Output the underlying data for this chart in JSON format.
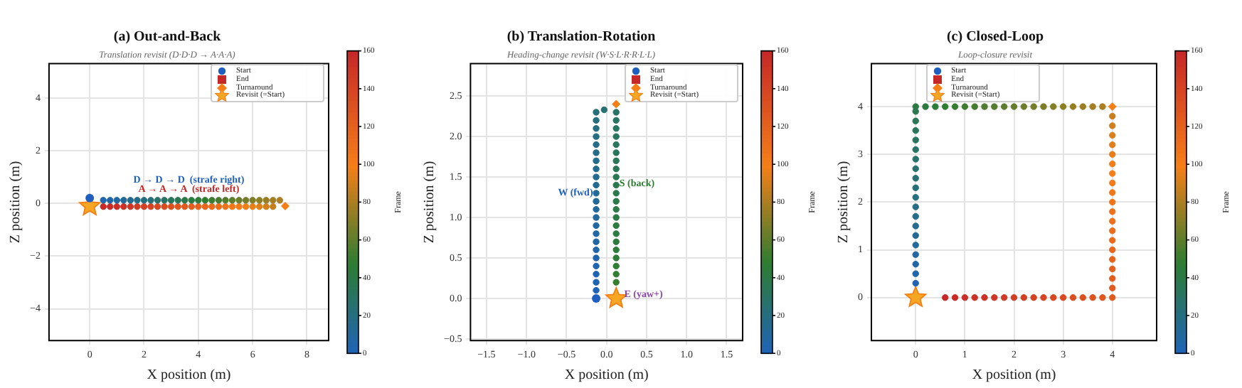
{
  "chart_data": [
    {
      "type": "scatter",
      "title": "(a) Out-and-Back",
      "subtitle": "Translation revisit (D·D·D → A·A·A)",
      "xlabel": "X position (m)",
      "ylabel": "Z position (m)",
      "clabel": "Frame",
      "clim": [
        0,
        160
      ],
      "cticks": [
        0,
        20,
        40,
        60,
        80,
        100,
        120,
        140,
        160
      ],
      "xlim": [
        -1.5,
        8.8
      ],
      "ylim": [
        -5.2,
        5.3
      ],
      "xticks": [
        0,
        2,
        4,
        6,
        8
      ],
      "yticks": [
        -4,
        -2,
        0,
        2,
        4
      ],
      "grid": true,
      "legend": "top right",
      "annotations": [
        "D → D → D  (strafe right)",
        "A → A → A  (strafe left)"
      ],
      "series": [
        {
          "marker": "circle",
          "x": [
            0.5,
            0.75,
            1,
            1.25,
            1.5,
            1.75,
            2,
            2.25,
            2.5,
            2.75,
            3,
            3.25,
            3.5,
            3.75,
            4,
            4.25,
            4.5,
            4.75,
            5,
            5.25,
            5.5,
            5.75,
            6,
            6.25,
            6.5,
            6.75,
            7
          ],
          "values": [
            0.12,
            0.12,
            0.12,
            0.12,
            0.12,
            0.12,
            0.12,
            0.12,
            0.12,
            0.12,
            0.12,
            0.12,
            0.12,
            0.12,
            0.12,
            0.12,
            0.12,
            0.12,
            0.12,
            0.12,
            0.12,
            0.12,
            0.12,
            0.12,
            0.12,
            0.12,
            0.12
          ],
          "colors": [
            "#1f65b0",
            "#2066a7",
            "#21689f",
            "#226996",
            "#236b8e",
            "#246d86",
            "#256e7d",
            "#267075",
            "#27726d",
            "#287364",
            "#29755c",
            "#2a7654",
            "#2b784b",
            "#2c7a43",
            "#2d7b3a",
            "#2e7d32",
            "#3a7d30",
            "#457d2f",
            "#517d2d",
            "#5d7d2c",
            "#687e2a",
            "#747e28",
            "#807e27",
            "#8b7e25",
            "#977e24",
            "#a37e22",
            "#aa7e21"
          ],
          "cvalues": [
            3,
            6,
            9,
            12,
            15,
            18,
            21,
            24,
            27,
            30,
            33,
            36,
            39,
            42,
            45,
            48,
            51,
            54,
            57,
            60,
            63,
            66,
            69,
            72,
            75,
            78,
            80
          ]
        },
        {
          "marker": "circle",
          "x": [
            6.75,
            6.5,
            6.25,
            6,
            5.75,
            5.5,
            5.25,
            5,
            4.75,
            4.5,
            4.25,
            4,
            3.75,
            3.5,
            3.25,
            3,
            2.75,
            2.5,
            2.25,
            2,
            1.75,
            1.5,
            1.25,
            1,
            0.75,
            0.5
          ],
          "values": [
            -0.12,
            -0.12,
            -0.12,
            -0.12,
            -0.12,
            -0.12,
            -0.12,
            -0.12,
            -0.12,
            -0.12,
            -0.12,
            -0.12,
            -0.12,
            -0.12,
            -0.12,
            -0.12,
            -0.12,
            -0.12,
            -0.12,
            -0.12,
            -0.12,
            -0.12,
            -0.12,
            -0.12,
            -0.12,
            -0.12
          ],
          "colors": [
            "#c67f1d",
            "#d17f1c",
            "#dd7f1a",
            "#e97f19",
            "#f47f17",
            "#f37b18",
            "#f17719",
            "#ee7219",
            "#ec6e1a",
            "#ea6a1b",
            "#e7661c",
            "#e5611d",
            "#e35d1e",
            "#e0591e",
            "#de541f",
            "#dc5020",
            "#d94c21",
            "#d74722",
            "#d54323",
            "#d23f24",
            "#d03b24",
            "#ce3625",
            "#cb3226",
            "#ca2f27",
            "#c82c27",
            "#c82b27"
          ],
          "cvalues": [
            87,
            90,
            93,
            96,
            99,
            102,
            105,
            108,
            111,
            114,
            117,
            120,
            123,
            126,
            129,
            132,
            135,
            138,
            141,
            144,
            147,
            150,
            153,
            155,
            157,
            158
          ]
        },
        {
          "type": "scatter",
          "name": "Start",
          "color": "#1f5fbf",
          "marker": "circle",
          "x": [
            0
          ],
          "values": [
            0.2
          ]
        },
        {
          "type": "scatter",
          "name": "End",
          "color": "#c62828",
          "marker": "square",
          "x": [
            null
          ],
          "values": [
            null
          ]
        },
        {
          "type": "scatter",
          "name": "Turnaround",
          "color": "#f57f17",
          "marker": "diamond",
          "x": [
            7.2
          ],
          "values": [
            -0.1
          ]
        },
        {
          "type": "scatter",
          "name": "Revisit (=Start)",
          "color": "#f5a623",
          "marker": "star",
          "x": [
            0
          ],
          "values": [
            -0.1
          ]
        }
      ]
    },
    {
      "type": "scatter",
      "title": "(b) Translation-Rotation",
      "subtitle": "Heading-change revisit (W·S·L·R·R·L·L)",
      "xlabel": "X position (m)",
      "ylabel": "Z position (m)",
      "clabel": "Frame",
      "clim": [
        0,
        160
      ],
      "cticks": [
        0,
        20,
        40,
        60,
        80,
        100,
        120,
        140,
        160
      ],
      "xlim": [
        -1.7,
        1.7
      ],
      "ylim": [
        -0.52,
        2.9
      ],
      "xticks": [
        {
          "value": -1.5,
          "label": "−1.5"
        },
        {
          "value": -1,
          "label": "−1.0"
        },
        {
          "value": -0.5,
          "label": "−0.5"
        },
        {
          "value": 0,
          "label": "0.0"
        },
        {
          "value": 0.5,
          "label": "0.5"
        },
        {
          "value": 1,
          "label": "1.0"
        },
        {
          "value": 1.5,
          "label": "1.5"
        }
      ],
      "yticks": [
        {
          "value": -0.5,
          "label": "−0.5"
        },
        {
          "value": 0,
          "label": "0.0"
        },
        {
          "value": 0.5,
          "label": "0.5"
        },
        {
          "value": 1,
          "label": "1.0"
        },
        {
          "value": 1.5,
          "label": "1.5"
        },
        {
          "value": 2,
          "label": "2.0"
        },
        {
          "value": 2.5,
          "label": "2.5"
        }
      ],
      "grid": true,
      "legend": "top right",
      "annotations": [
        {
          "text": "W (fwd)",
          "x": -0.17,
          "y": 1.3
        },
        {
          "text": "S (back)",
          "x": 0.16,
          "y": 1.42
        },
        {
          "text": "E (yaw+)",
          "x": 0.22,
          "y": 0.05
        }
      ],
      "series": [
        {
          "marker": "circle",
          "x": [
            -0.13,
            -0.13,
            -0.13,
            -0.13,
            -0.13,
            -0.13,
            -0.13,
            -0.13,
            -0.13,
            -0.13,
            -0.13,
            -0.13,
            -0.13,
            -0.13,
            -0.13,
            -0.13,
            -0.13,
            -0.13,
            -0.13,
            -0.13,
            -0.13,
            -0.13,
            -0.13,
            -0.03
          ],
          "values": [
            0.1,
            0.2,
            0.3,
            0.4,
            0.5,
            0.6,
            0.7,
            0.8,
            0.9,
            1.0,
            1.1,
            1.2,
            1.3,
            1.4,
            1.5,
            1.6,
            1.7,
            1.8,
            1.9,
            2.0,
            2.1,
            2.2,
            2.3,
            2.33
          ],
          "colors": [
            "#1e63b8",
            "#1e64b5",
            "#1f64b2",
            "#1f65b0",
            "#1f65ad",
            "#2066aa",
            "#2066a7",
            "#2067a4",
            "#2167a2",
            "#21689f",
            "#21689c",
            "#226999",
            "#226996",
            "#226a94",
            "#236b91",
            "#236b8e",
            "#236c8b",
            "#246c89",
            "#246d86",
            "#246d83",
            "#256e80",
            "#256e7d",
            "#256f7b",
            "#267172"
          ],
          "cvalues": [
            0,
            1,
            2,
            3,
            4,
            5,
            6,
            7,
            8,
            9,
            10,
            11,
            12,
            13,
            14,
            15,
            16,
            17,
            18,
            19,
            20,
            21,
            22,
            25
          ]
        },
        {
          "marker": "circle",
          "x": [
            0.12,
            0.12,
            0.12,
            0.12,
            0.12,
            0.12,
            0.12,
            0.12,
            0.12,
            0.12,
            0.12,
            0.12,
            0.12,
            0.12,
            0.12,
            0.12,
            0.12,
            0.12,
            0.12,
            0.12,
            0.12,
            0.12
          ],
          "values": [
            2.3,
            2.2,
            2.1,
            2.0,
            1.9,
            1.8,
            1.7,
            1.6,
            1.5,
            1.4,
            1.3,
            1.2,
            1.1,
            1.0,
            0.9,
            0.8,
            0.7,
            0.6,
            0.5,
            0.4,
            0.3,
            0.2
          ],
          "colors": [
            "#287367",
            "#287364",
            "#287461",
            "#29745f",
            "#29755c",
            "#297559",
            "#2a7656",
            "#2a7654",
            "#2a7751",
            "#2b784e",
            "#2b784b",
            "#2b7948",
            "#2c7946",
            "#2c7a43",
            "#2c7a40",
            "#2d7b3d",
            "#2d7b3a",
            "#2d7c38",
            "#2e7c35",
            "#2e7d32",
            "#327d31",
            "#367d31"
          ],
          "cvalues": [
            29,
            30,
            31,
            32,
            33,
            34,
            35,
            36,
            37,
            38,
            39,
            40,
            41,
            42,
            43,
            44,
            45,
            46,
            47,
            48,
            49,
            50
          ]
        },
        {
          "type": "scatter",
          "name": "Start",
          "color": "#1f5fbf",
          "marker": "circle",
          "x": [
            -0.13
          ],
          "values": [
            0
          ]
        },
        {
          "type": "scatter",
          "name": "End",
          "color": "#c62828",
          "marker": "square",
          "x": [
            null
          ],
          "values": [
            null
          ]
        },
        {
          "type": "scatter",
          "name": "Turnaround",
          "color": "#f57f17",
          "marker": "diamond",
          "x": [
            0.12
          ],
          "values": [
            2.4
          ]
        },
        {
          "type": "scatter",
          "name": "Revisit (=Start)",
          "color": "#f5a623",
          "marker": "star",
          "x": [
            0.12
          ],
          "values": [
            0
          ]
        }
      ]
    },
    {
      "type": "scatter",
      "title": "(c) Closed-Loop",
      "subtitle": "Loop-closure revisit",
      "xlabel": "X position (m)",
      "ylabel": "Z position (m)",
      "clabel": "Frame",
      "clim": [
        0,
        160
      ],
      "cticks": [
        0,
        20,
        40,
        60,
        80,
        100,
        120,
        140,
        160
      ],
      "xlim": [
        -0.9,
        4.9
      ],
      "ylim": [
        -0.9,
        4.9
      ],
      "xticks": [
        0,
        1,
        2,
        3,
        4
      ],
      "yticks": [
        0,
        1,
        2,
        3,
        4
      ],
      "grid": true,
      "legend": "top left",
      "series": [
        {
          "marker": "circle",
          "x": [
            0,
            0,
            0,
            0,
            0,
            0,
            0,
            0,
            0,
            0,
            0,
            0,
            0,
            0,
            0,
            0,
            0,
            0,
            0
          ],
          "values": [
            0.3,
            0.5,
            0.7,
            0.9,
            1.1,
            1.3,
            1.5,
            1.7,
            1.9,
            2.1,
            2.3,
            2.5,
            2.7,
            2.9,
            3.1,
            3.3,
            3.5,
            3.7,
            3.9
          ],
          "colors": [
            "#1f64b2",
            "#1f65ad",
            "#2066a7",
            "#2167a2",
            "#21689c",
            "#226996",
            "#236b91",
            "#236c8b",
            "#246d86",
            "#256e80",
            "#256f7b",
            "#267075",
            "#27716f",
            "#27726a",
            "#287364",
            "#29745f",
            "#297559",
            "#2a7654",
            "#2b784e"
          ],
          "cvalues": [
            2,
            4,
            6,
            8,
            10,
            12,
            14,
            16,
            18,
            20,
            22,
            24,
            26,
            28,
            30,
            32,
            34,
            36,
            38
          ]
        },
        {
          "marker": "circle",
          "x": [
            0,
            0.2,
            0.4,
            0.6,
            0.8,
            1,
            1.2,
            1.4,
            1.6,
            1.8,
            2,
            2.2,
            2.4,
            2.6,
            2.8,
            3,
            3.2,
            3.4,
            3.6,
            3.8
          ],
          "values": [
            4,
            4,
            4,
            4,
            4,
            4,
            4,
            4,
            4,
            4,
            4,
            4,
            4,
            4,
            4,
            4,
            4,
            4,
            4,
            4
          ],
          "colors": [
            "#2c7a43",
            "#2d7b3d",
            "#2d7c38",
            "#2e7d32",
            "#367d31",
            "#3e7d30",
            "#457d2f",
            "#4d7d2e",
            "#557d2d",
            "#5d7d2c",
            "#647e2b",
            "#6c7e2a",
            "#747e28",
            "#7c7e27",
            "#847e26",
            "#8b7e25",
            "#937e24",
            "#9b7e23",
            "#a37e22",
            "#aa7e21"
          ],
          "cvalues": [
            42,
            44,
            46,
            48,
            50,
            52,
            54,
            56,
            58,
            60,
            62,
            64,
            66,
            68,
            70,
            72,
            74,
            76,
            78,
            80
          ]
        },
        {
          "marker": "circle",
          "x": [
            4,
            4,
            4,
            4,
            4,
            4,
            4,
            4,
            4,
            4,
            4,
            4,
            4,
            4,
            4,
            4,
            4,
            4,
            4
          ],
          "values": [
            3.8,
            3.6,
            3.4,
            3.2,
            3,
            2.8,
            2.6,
            2.4,
            2.2,
            2,
            1.8,
            1.6,
            1.4,
            1.2,
            1,
            0.8,
            0.6,
            0.4,
            0.2
          ],
          "colors": [
            "#c97f1d",
            "#d17f1c",
            "#d97f1b",
            "#e17f1a",
            "#e97f19",
            "#f07f18",
            "#f47e17",
            "#f37b18",
            "#f17818",
            "#f07519",
            "#ee7219",
            "#ed701a",
            "#eb6d1b",
            "#ea6a1b",
            "#e8671c",
            "#e6641c",
            "#e5611d",
            "#e35e1d",
            "#e25b1e"
          ],
          "cvalues": [
            88,
            90,
            92,
            94,
            96,
            98,
            100,
            102,
            104,
            106,
            108,
            110,
            112,
            114,
            116,
            118,
            120,
            122,
            124
          ]
        },
        {
          "marker": "circle",
          "x": [
            4,
            3.8,
            3.6,
            3.4,
            3.2,
            3,
            2.8,
            2.6,
            2.4,
            2.2,
            2,
            1.8,
            1.6,
            1.4,
            1.2,
            1,
            0.8,
            0.6
          ],
          "values": [
            0,
            0,
            0,
            0,
            0,
            0,
            0,
            0,
            0,
            0,
            0,
            0,
            0,
            0,
            0,
            0,
            0,
            0
          ],
          "colors": [
            "#e0591e",
            "#df561f",
            "#dd5320",
            "#dc5020",
            "#da4d21",
            "#d94a21",
            "#d74722",
            "#d54522",
            "#d44223",
            "#d23f24",
            "#d13c24",
            "#cf3925",
            "#ce3625",
            "#cc3326",
            "#cb3126",
            "#c92e27",
            "#c82b27",
            "#c62828"
          ],
          "cvalues": [
            126,
            128,
            130,
            132,
            134,
            136,
            138,
            140,
            142,
            144,
            146,
            148,
            150,
            152,
            154,
            156,
            158,
            160
          ]
        },
        {
          "type": "scatter",
          "name": "Start",
          "color": "#1f5fbf",
          "marker": "circle",
          "x": [
            null
          ],
          "values": [
            null
          ]
        },
        {
          "type": "scatter",
          "name": "End",
          "color": "#c62828",
          "marker": "square",
          "x": [
            null
          ],
          "values": [
            null
          ]
        },
        {
          "type": "scatter",
          "name": "Turnaround",
          "color": "#f57f17",
          "marker": "diamond",
          "x": [
            4
          ],
          "values": [
            4
          ]
        },
        {
          "type": "scatter",
          "name": "Revisit (=Start)",
          "color": "#f5a623",
          "marker": "star",
          "x": [
            0
          ],
          "values": [
            0
          ]
        }
      ]
    }
  ]
}
